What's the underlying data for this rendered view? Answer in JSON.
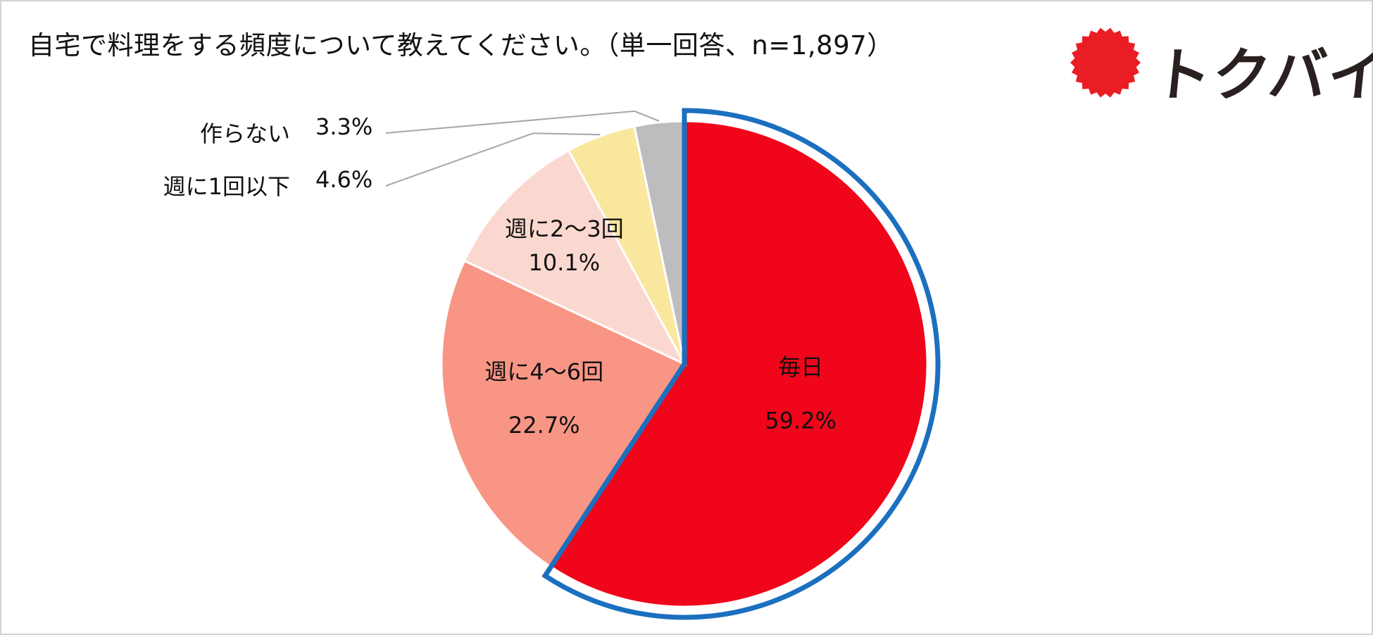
{
  "chart_data": {
    "type": "pie",
    "title": "自宅で料理をする頻度について教えてください。（単一回答、n=1,897）",
    "unit": "%",
    "slices": [
      {
        "label": "毎日",
        "value": 59.2,
        "value_label": "59.2%",
        "color": "#f0051a",
        "highlighted": true
      },
      {
        "label": "週に4～6回",
        "value": 22.7,
        "value_label": "22.7%",
        "color": "#f89585"
      },
      {
        "label": "週に2～3回",
        "value": 10.1,
        "value_label": "10.1%",
        "color": "#fbd8cf"
      },
      {
        "label": "週に1回以下",
        "value": 4.6,
        "value_label": "4.6%",
        "color": "#fae79e"
      },
      {
        "label": "作らない",
        "value": 3.3,
        "value_label": "3.3%",
        "color": "#bdbdc0"
      }
    ],
    "start": "12 o'clock",
    "direction": "clockwise",
    "highlight_outline_color": "#1b6fbf",
    "legend": "none"
  },
  "logo": {
    "text": "トクバイ",
    "mark_color": "#ea1c24"
  }
}
